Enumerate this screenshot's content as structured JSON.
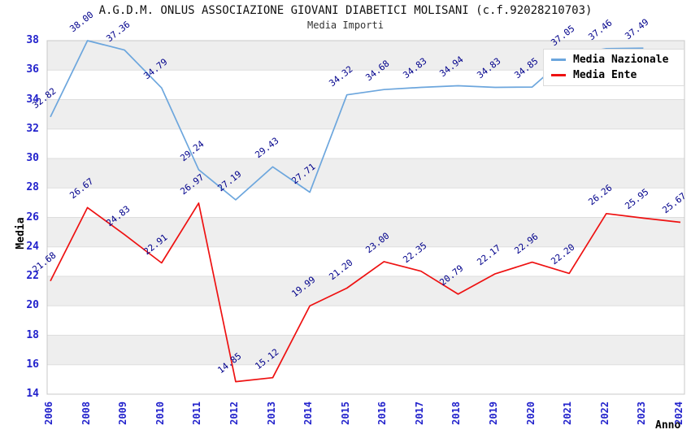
{
  "header": {
    "title": "A.G.D.M. ONLUS ASSOCIAZIONE GIOVANI DIABETICI MOLISANI (c.f.92028210703)",
    "subtitle": "Media Importi"
  },
  "axes": {
    "y_title": "Media",
    "x_title": "Anno",
    "y_ticks": [
      "38",
      "36",
      "34",
      "32",
      "30",
      "28",
      "26",
      "24",
      "22",
      "20",
      "18",
      "16",
      "14"
    ]
  },
  "legend": {
    "items": [
      {
        "label": "Media Nazionale",
        "color": "#6CA6DD"
      },
      {
        "label": "Media Ente",
        "color": "#EE1111"
      }
    ]
  },
  "colors": {
    "band_gray": "#EEEEEE",
    "band_white": "#FFFFFF",
    "grid_line": "#DDDDDD",
    "plot_border": "#C8C8C8",
    "tick_blue": "#2323CC",
    "data_label_navy": "#00008B",
    "nazionale_blue": "#6CA6DD",
    "ente_red": "#EE1111"
  },
  "chart_data": {
    "type": "line",
    "title": "A.G.D.M. ONLUS ASSOCIAZIONE GIOVANI DIABETICI MOLISANI (c.f.92028210703)",
    "subtitle": "Media Importi",
    "xlabel": "Anno",
    "ylabel": "Media",
    "ylim": [
      14,
      38
    ],
    "y_tick_step": 2,
    "grid": true,
    "background_bands": true,
    "legend_position": "top-right",
    "point_labels_shown": true,
    "categories": [
      "2006",
      "2008",
      "2009",
      "2010",
      "2011",
      "2012",
      "2013",
      "2014",
      "2015",
      "2016",
      "2017",
      "2018",
      "2019",
      "2020",
      "2021",
      "2022",
      "2023",
      "2024"
    ],
    "series": [
      {
        "name": "Media Nazionale",
        "color": "#6CA6DD",
        "values": [
          32.82,
          38.0,
          37.36,
          34.79,
          29.24,
          27.19,
          29.43,
          27.71,
          34.32,
          34.68,
          34.83,
          34.94,
          34.83,
          34.85,
          37.05,
          37.46,
          37.49,
          null
        ]
      },
      {
        "name": "Media Ente",
        "color": "#EE1111",
        "values": [
          21.68,
          26.67,
          24.83,
          22.91,
          26.97,
          14.85,
          15.12,
          19.99,
          21.2,
          23.0,
          22.35,
          20.79,
          22.17,
          22.96,
          22.2,
          26.26,
          25.95,
          25.67
        ]
      }
    ]
  }
}
